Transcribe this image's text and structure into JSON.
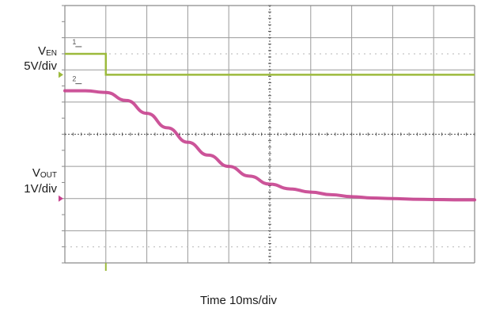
{
  "chart_data": {
    "type": "line",
    "grid": true,
    "x_divisions": 10,
    "y_divisions": 8,
    "xlabel": "Time 10ms/div",
    "channels": [
      {
        "name": "VEN",
        "label_main": "V",
        "label_sub": "EN",
        "scale": "5V/div",
        "marker": "1",
        "color": "#9cba3c",
        "units": "div",
        "x": [
          0.0,
          1.0,
          1.0,
          10.0
        ],
        "y": [
          6.5,
          6.5,
          5.85,
          5.85
        ]
      },
      {
        "name": "VOUT",
        "label_main": "V",
        "label_sub": "OUT",
        "scale": "1V/div",
        "marker": "2",
        "color": "#c6418e",
        "units": "div",
        "x": [
          0.0,
          0.5,
          1.0,
          1.5,
          2.0,
          2.5,
          3.0,
          3.5,
          4.0,
          4.5,
          5.0,
          5.5,
          6.0,
          6.5,
          7.0,
          7.5,
          8.0,
          8.5,
          9.0,
          9.5,
          10.0
        ],
        "y": [
          5.35,
          5.35,
          5.3,
          5.05,
          4.65,
          4.2,
          3.75,
          3.35,
          3.0,
          2.7,
          2.45,
          2.3,
          2.2,
          2.12,
          2.06,
          2.02,
          2.0,
          1.98,
          1.97,
          1.96,
          1.96
        ]
      }
    ]
  }
}
